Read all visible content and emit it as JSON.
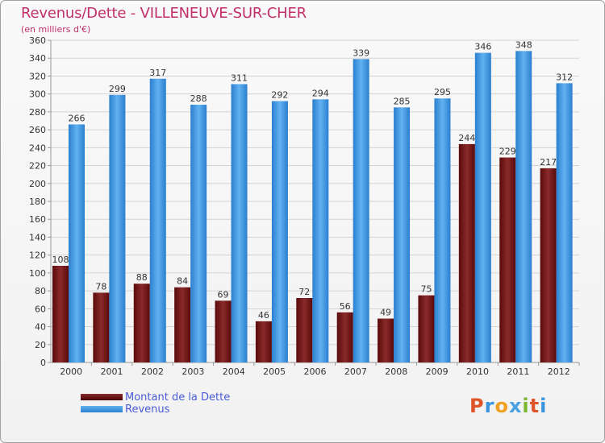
{
  "header": {
    "title": "Revenus/Dette - VILLENEUVE-SUR-CHER",
    "subtitle": "(en milliers d'€)"
  },
  "legend": {
    "items": [
      {
        "label": "Montant de la Dette",
        "color": "#6b0f10"
      },
      {
        "label": "Revenus",
        "color": "#3a93dd"
      }
    ]
  },
  "logo": {
    "text": "Proxiti",
    "letters": [
      "P",
      "r",
      "o",
      "x",
      "i",
      "t",
      "i"
    ],
    "colors": [
      "#e0542a",
      "#3a93dd",
      "#f0a020",
      "#4aa0e0",
      "#7ab830",
      "#e0542a",
      "#3a93dd"
    ]
  },
  "chart_data": {
    "type": "bar",
    "categories": [
      "2000",
      "2001",
      "2002",
      "2003",
      "2004",
      "2005",
      "2006",
      "2007",
      "2008",
      "2009",
      "2010",
      "2011",
      "2012"
    ],
    "series": [
      {
        "name": "Montant de la Dette",
        "color": "#6b0f10",
        "values": [
          108,
          78,
          88,
          84,
          69,
          46,
          72,
          56,
          49,
          75,
          244,
          229,
          217
        ]
      },
      {
        "name": "Revenus",
        "color": "#3a93dd",
        "values": [
          266,
          299,
          317,
          288,
          311,
          292,
          294,
          339,
          285,
          295,
          346,
          348,
          312
        ]
      }
    ],
    "yticks": [
      0,
      20,
      40,
      60,
      80,
      100,
      120,
      140,
      160,
      180,
      200,
      220,
      240,
      260,
      280,
      300,
      320,
      340,
      360
    ],
    "ylim": [
      0,
      360
    ],
    "grid": true,
    "legend_position": "bottom-left"
  }
}
